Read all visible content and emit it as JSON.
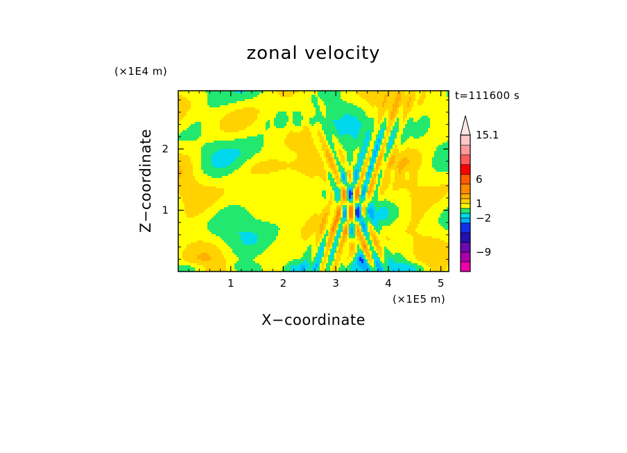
{
  "chart_data": {
    "type": "heatmap",
    "title": "zonal velocity",
    "xlabel": "X−coordinate",
    "ylabel": "Z−coordinate",
    "x_unit": "(×1E5 m)",
    "y_unit": "(×1E4 m)",
    "annotation": "t=111600 s",
    "xlim": [
      0,
      5.15
    ],
    "ylim": [
      0,
      2.95
    ],
    "xticks": [
      1,
      2,
      3,
      4,
      5
    ],
    "yticks": [
      1,
      2
    ],
    "xtick_labels": [
      "1",
      "2",
      "3",
      "4",
      "5"
    ],
    "ytick_labels": [
      "1",
      "2"
    ],
    "colorbar": {
      "labels": [
        {
          "value": 15.1,
          "text": "15.1"
        },
        {
          "value": 6,
          "text": "6"
        },
        {
          "value": 1,
          "text": "1"
        },
        {
          "value": -2,
          "text": "−2"
        },
        {
          "value": -9,
          "text": "−9"
        }
      ],
      "bands": [
        {
          "lo": -13,
          "hi": -11,
          "color": "#ee00aa"
        },
        {
          "lo": -11,
          "hi": -9,
          "color": "#aa00aa"
        },
        {
          "lo": -9,
          "hi": -7,
          "color": "#6a0ab0"
        },
        {
          "lo": -7,
          "hi": -5,
          "color": "#2210b0"
        },
        {
          "lo": -5,
          "hi": -3,
          "color": "#1030e6"
        },
        {
          "lo": -3,
          "hi": -2,
          "color": "#00b0ff"
        },
        {
          "lo": -2,
          "hi": -1,
          "color": "#00d8ee"
        },
        {
          "lo": -1,
          "hi": 0,
          "color": "#22e870"
        },
        {
          "lo": 0,
          "hi": 1,
          "color": "#ffff00"
        },
        {
          "lo": 1,
          "hi": 2,
          "color": "#ffd200"
        },
        {
          "lo": 2,
          "hi": 3,
          "color": "#ffb000"
        },
        {
          "lo": 3,
          "hi": 5,
          "color": "#ff8a00"
        },
        {
          "lo": 5,
          "hi": 7,
          "color": "#ff5a00"
        },
        {
          "lo": 7,
          "hi": 9,
          "color": "#ff0000"
        },
        {
          "lo": 9,
          "hi": 11,
          "color": "#ff5a5a"
        },
        {
          "lo": 11,
          "hi": 13,
          "color": "#ff9999"
        },
        {
          "lo": 13,
          "hi": 15.1,
          "color": "#ffc8c8"
        }
      ],
      "extend": "max"
    }
  }
}
